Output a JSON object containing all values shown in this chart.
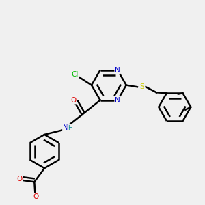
{
  "background_color": "#f0f0f0",
  "bond_color": "#000000",
  "N_color": "#0000cc",
  "O_color": "#dd0000",
  "S_color": "#cccc00",
  "Cl_color": "#00bb00",
  "C_color": "#000000",
  "H_color": "#008888",
  "line_width": 1.8,
  "dbo": 0.018,
  "figsize": [
    3.0,
    3.0
  ],
  "dpi": 100,
  "xlim": [
    0.05,
    1.15
  ],
  "ylim": [
    0.05,
    1.05
  ]
}
